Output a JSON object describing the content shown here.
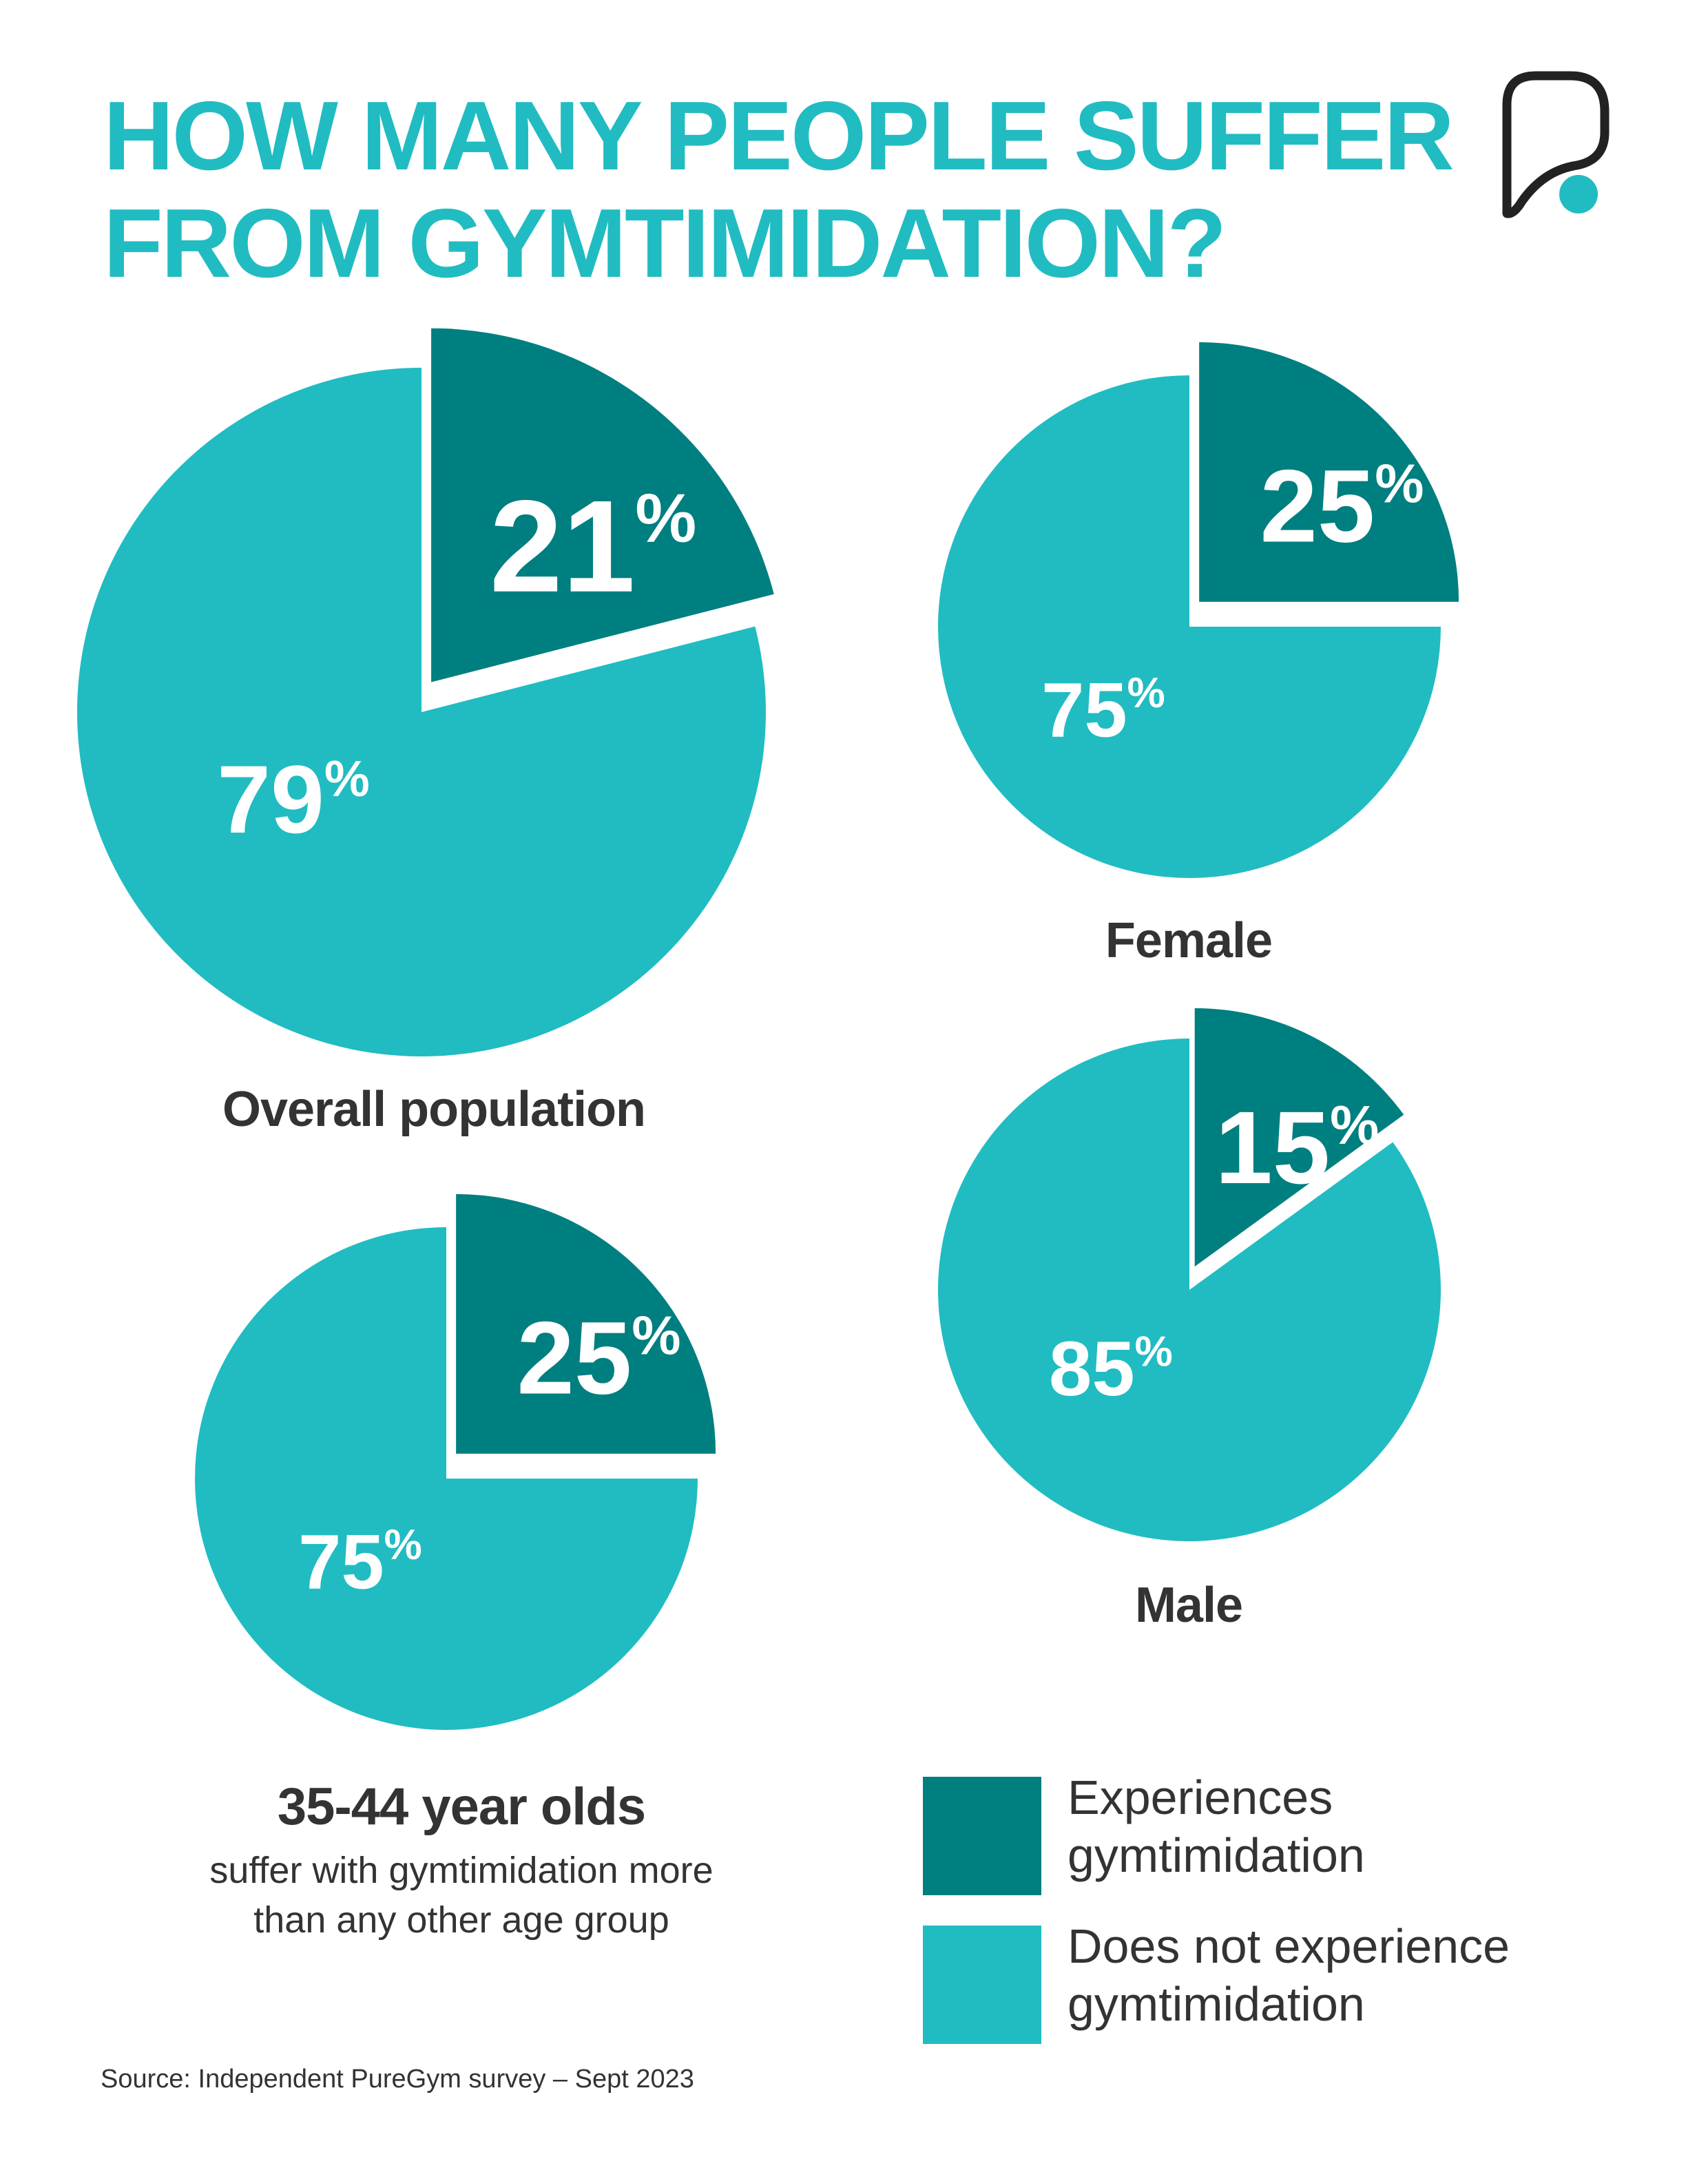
{
  "title_lines": [
    "HOW MANY PEOPLE SUFFER",
    "FROM GYMTIMIDATION?"
  ],
  "colors": {
    "accent": "#20bcc2",
    "experiences": "#007f80",
    "does_not": "#20bcc2",
    "text": "#333333"
  },
  "logo": {
    "icon": "puregym-p-logo-icon"
  },
  "chart_data": [
    {
      "type": "pie",
      "label": "Overall population",
      "slices": [
        {
          "category": "Experiences gymtimidation",
          "value": 21,
          "label": "21%"
        },
        {
          "category": "Does not experience gymtimidation",
          "value": 79,
          "label": "79%"
        }
      ]
    },
    {
      "type": "pie",
      "label": "Female",
      "slices": [
        {
          "category": "Experiences gymtimidation",
          "value": 25,
          "label": "25%"
        },
        {
          "category": "Does not experience gymtimidation",
          "value": 75,
          "label": "75%"
        }
      ]
    },
    {
      "type": "pie",
      "label": "Male",
      "slices": [
        {
          "category": "Experiences gymtimidation",
          "value": 15,
          "label": "15%"
        },
        {
          "category": "Does not experience gymtimidation",
          "value": 85,
          "label": "85%"
        }
      ]
    },
    {
      "type": "pie",
      "label": "35-44 year olds",
      "slices": [
        {
          "category": "Experiences gymtimidation",
          "value": 25,
          "label": "25%"
        },
        {
          "category": "Does not experience gymtimidation",
          "value": 75,
          "label": "75%"
        }
      ]
    }
  ],
  "age_note_lines": [
    "suffer with gymtimidation more",
    "than any other age group"
  ],
  "legend": [
    {
      "lines": [
        "Experiences",
        "gymtimidation"
      ]
    },
    {
      "lines": [
        "Does not experience",
        "gymtimidation"
      ]
    }
  ],
  "source": "Source: Independent PureGym survey – Sept 2023"
}
